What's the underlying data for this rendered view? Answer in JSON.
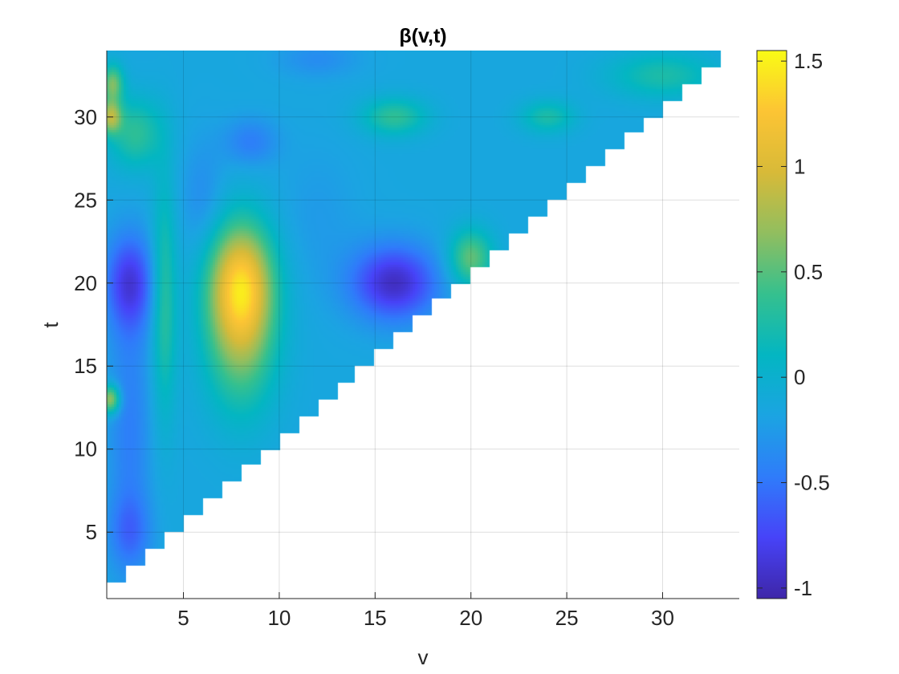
{
  "chart_data": {
    "type": "heatmap",
    "title": "β(v,t)",
    "xlabel": "v",
    "ylabel": "t",
    "xlim": [
      1,
      34
    ],
    "ylim": [
      1,
      34
    ],
    "xticks": [
      5,
      10,
      15,
      20,
      25,
      30
    ],
    "yticks": [
      5,
      10,
      15,
      20,
      25,
      30
    ],
    "xtick_labels": [
      "5",
      "10",
      "15",
      "20",
      "25",
      "30"
    ],
    "ytick_labels": [
      "5",
      "10",
      "15",
      "20",
      "25",
      "30"
    ],
    "grid": true,
    "domain": "lower-triangular: t > v (region with t <= v is blank)",
    "colormap": "parula",
    "colormap_stops": [
      "#3e26a8",
      "#4743f8",
      "#2f7cfa",
      "#1ba4e2",
      "#03b6c2",
      "#35c08e",
      "#91be5f",
      "#d8ba38",
      "#fcc434",
      "#f9fb15"
    ],
    "colorbar": {
      "range": [
        -1.05,
        1.55
      ],
      "ticks": [
        -1,
        -0.5,
        0,
        0.5,
        1,
        1.5
      ],
      "tick_labels": [
        "-1",
        "-0.5",
        "0",
        "0.5",
        "1",
        "1.5"
      ],
      "location": "right"
    },
    "features": [
      {
        "v": 8,
        "t": 20,
        "value": 1.2,
        "sigma_v": 1.2,
        "sigma_t": 2.6
      },
      {
        "v": 8,
        "t": 16,
        "value": 0.45,
        "sigma_v": 1.3,
        "sigma_t": 3.0
      },
      {
        "v": 16,
        "t": 20,
        "value": -0.95,
        "sigma_v": 1.6,
        "sigma_t": 1.6
      },
      {
        "v": 2.2,
        "t": 20,
        "value": -0.8,
        "sigma_v": 0.9,
        "sigma_t": 2.0
      },
      {
        "v": 2.2,
        "t": 11,
        "value": -0.45,
        "sigma_v": 0.8,
        "sigma_t": 6.0
      },
      {
        "v": 2.2,
        "t": 5,
        "value": -0.45,
        "sigma_v": 0.8,
        "sigma_t": 1.5
      },
      {
        "v": 20,
        "t": 21.5,
        "value": 0.55,
        "sigma_v": 0.8,
        "sigma_t": 1.2
      },
      {
        "v": 4,
        "t": 19,
        "value": 0.35,
        "sigma_v": 0.45,
        "sigma_t": 5.0
      },
      {
        "v": 1.2,
        "t": 13,
        "value": 0.8,
        "sigma_v": 0.35,
        "sigma_t": 0.6
      },
      {
        "v": 1.2,
        "t": 30,
        "value": 0.7,
        "sigma_v": 0.4,
        "sigma_t": 0.7
      },
      {
        "v": 1.3,
        "t": 32,
        "value": 0.6,
        "sigma_v": 0.4,
        "sigma_t": 0.8
      },
      {
        "v": 8.5,
        "t": 28.5,
        "value": -0.45,
        "sigma_v": 1.0,
        "sigma_t": 1.0
      },
      {
        "v": 16,
        "t": 30,
        "value": 0.35,
        "sigma_v": 1.2,
        "sigma_t": 0.8
      },
      {
        "v": 24,
        "t": 30,
        "value": 0.25,
        "sigma_v": 1.0,
        "sigma_t": 0.7
      },
      {
        "v": 12,
        "t": 33.5,
        "value": -0.35,
        "sigma_v": 1.5,
        "sigma_t": 0.8
      },
      {
        "v": 6,
        "t": 25,
        "value": -0.35,
        "sigma_v": 0.8,
        "sigma_t": 2.5
      },
      {
        "v": 12,
        "t": 24,
        "value": -0.25,
        "sigma_v": 1.5,
        "sigma_t": 3.0
      },
      {
        "v": 2.5,
        "t": 29,
        "value": 0.35,
        "sigma_v": 1.0,
        "sigma_t": 1.5
      },
      {
        "v": 30,
        "t": 32.5,
        "value": 0.25,
        "sigma_v": 2.0,
        "sigma_t": 1.0
      },
      {
        "v": 28,
        "t": 32,
        "value": -0.15,
        "sigma_v": 1.5,
        "sigma_t": 1.2
      }
    ],
    "background_value": -0.15
  }
}
